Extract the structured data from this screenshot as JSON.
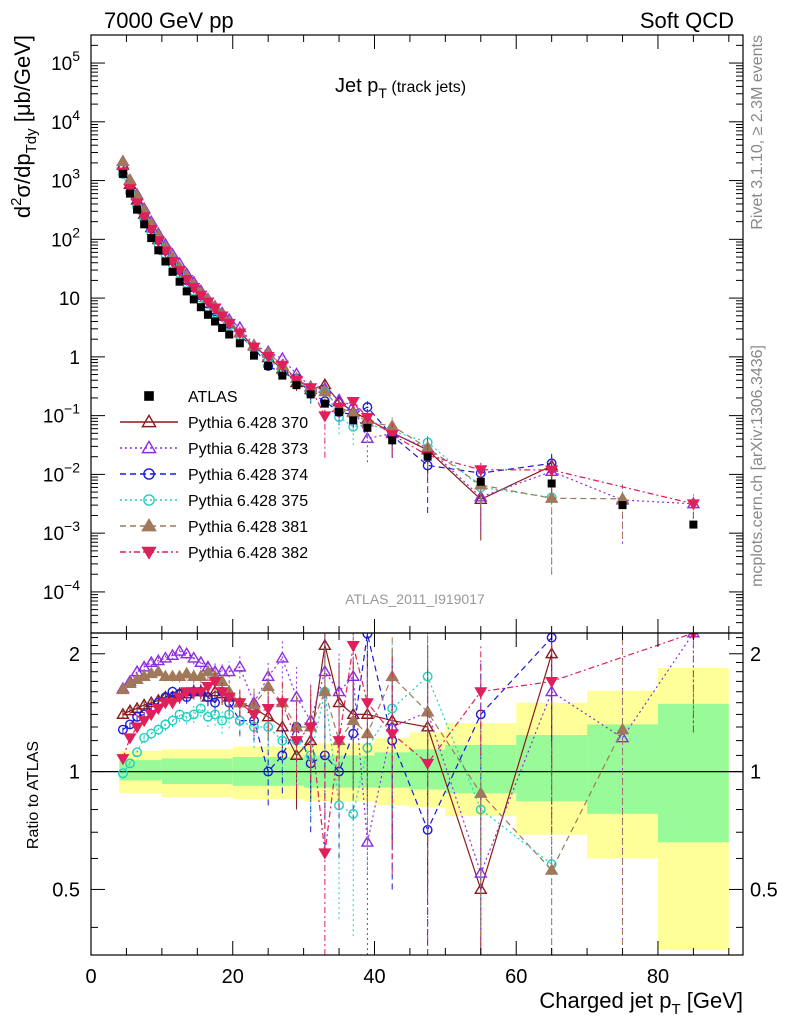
{
  "header": {
    "energy_label": "7000 GeV pp",
    "category_label": "Soft QCD"
  },
  "side_labels": {
    "rivet": "Rivet 3.1.10, ≥ 2.3M events",
    "source": "mcplots.cern.ch [arXiv:1306.3436]"
  },
  "chart_data": {
    "type": "scatter",
    "title_main": "Jet p",
    "title_sub": "T",
    "title_paren": "(track jets)",
    "analysis_id": "ATLAS_2011_I919017",
    "xlabel": "Charged jet p",
    "xlabel_sub": "T",
    "xlabel_unit": "[GeV]",
    "ylabel": "d²σ/dp_Tdy [μb/GeV]",
    "ylabel_parts": {
      "a": "d",
      "sup": "2",
      "b": "σ/dp",
      "sub": "Tdy",
      "c": " [μb/GeV]"
    },
    "ratio_ylabel": "Ratio to ATLAS",
    "xlim": [
      0,
      92
    ],
    "ylim_log": [
      2e-05,
      300000.0
    ],
    "ratio_ylim": [
      0.34,
      2.26
    ],
    "x_ticks": [
      0,
      20,
      40,
      60,
      80
    ],
    "y_tick_labels": [
      {
        "v": 100000.0,
        "base": "10",
        "exp": "5"
      },
      {
        "v": 10000.0,
        "base": "10",
        "exp": "4"
      },
      {
        "v": 1000.0,
        "base": "10",
        "exp": "3"
      },
      {
        "v": 100.0,
        "base": "10",
        "exp": "2"
      },
      {
        "v": 10,
        "base": "10",
        "exp": ""
      },
      {
        "v": 1,
        "base": "1",
        "exp": ""
      },
      {
        "v": 0.1,
        "base": "10",
        "exp": "−1"
      },
      {
        "v": 0.01,
        "base": "10",
        "exp": "−2"
      },
      {
        "v": 0.001,
        "base": "10",
        "exp": "−3"
      },
      {
        "v": 0.0001,
        "base": "10",
        "exp": "−4"
      }
    ],
    "ratio_ticks": [
      0.5,
      1,
      2
    ],
    "legend_position": "middle-left",
    "bands": [
      {
        "x0": 4,
        "x1": 10,
        "g": [
          0.95,
          1.07
        ],
        "y": [
          0.88,
          1.13
        ]
      },
      {
        "x0": 10,
        "x1": 20,
        "g": [
          0.93,
          1.08
        ],
        "y": [
          0.86,
          1.14
        ]
      },
      {
        "x0": 20,
        "x1": 30,
        "g": [
          0.92,
          1.09
        ],
        "y": [
          0.85,
          1.16
        ]
      },
      {
        "x0": 30,
        "x1": 40,
        "g": [
          0.91,
          1.1
        ],
        "y": [
          0.84,
          1.18
        ]
      },
      {
        "x0": 40,
        "x1": 45,
        "g": [
          0.91,
          1.12
        ],
        "y": [
          0.82,
          1.22
        ]
      },
      {
        "x0": 45,
        "x1": 50,
        "g": [
          0.9,
          1.14
        ],
        "y": [
          0.81,
          1.26
        ]
      },
      {
        "x0": 50,
        "x1": 60,
        "g": [
          0.88,
          1.17
        ],
        "y": [
          0.77,
          1.33
        ]
      },
      {
        "x0": 60,
        "x1": 70,
        "g": [
          0.84,
          1.24
        ],
        "y": [
          0.69,
          1.5
        ]
      },
      {
        "x0": 70,
        "x1": 80,
        "g": [
          0.78,
          1.32
        ],
        "y": [
          0.6,
          1.61
        ]
      },
      {
        "x0": 80,
        "x1": 90,
        "g": [
          0.66,
          1.49
        ],
        "y": [
          0.35,
          1.84
        ]
      }
    ],
    "x": [
      4.5,
      5.5,
      6.5,
      7.5,
      8.5,
      9.5,
      10.5,
      11.5,
      12.5,
      13.5,
      14.5,
      15.5,
      16.5,
      17.5,
      18.5,
      19.5,
      21,
      23,
      25,
      27,
      29,
      31,
      33,
      35,
      37,
      39,
      42.5,
      47.5,
      55,
      65,
      75,
      85
    ],
    "data": {
      "name": "ATLAS",
      "values": [
        1300,
        600,
        320,
        180,
        105,
        65,
        42,
        28,
        19,
        13,
        9.5,
        7,
        5.2,
        4,
        3.1,
        2.4,
        1.7,
        1.05,
        0.7,
        0.48,
        0.33,
        0.23,
        0.16,
        0.115,
        0.083,
        0.062,
        0.038,
        0.02,
        0.0075,
        0.007,
        0.003,
        0.0014
      ]
    },
    "series": [
      {
        "name": "Pythia 6.428 370",
        "color": "#8b1a1a",
        "marker": "tri-up-open",
        "dash": "",
        "ratios": [
          1.4,
          1.43,
          1.45,
          1.48,
          1.5,
          1.52,
          1.55,
          1.55,
          1.58,
          1.58,
          1.6,
          1.6,
          1.55,
          1.6,
          1.58,
          1.55,
          1.5,
          1.45,
          1.38,
          1.3,
          1.1,
          1.2,
          2.1,
          1.5,
          1.4,
          1.4,
          1.35,
          1.3,
          0.5,
          2.0,
          null,
          null
        ],
        "errs": [
          0.03,
          0.03,
          0.03,
          0.03,
          0.03,
          0.04,
          0.04,
          0.05,
          0.05,
          0.06,
          0.06,
          0.07,
          0.08,
          0.09,
          0.1,
          0.11,
          0.12,
          0.15,
          0.18,
          0.22,
          0.3,
          0.35,
          0.5,
          0.4,
          0.5,
          0.6,
          0.7,
          0.8,
          0.4,
          1.0,
          null,
          null
        ]
      },
      {
        "name": "Pythia 6.428 373",
        "color": "#8e2be2",
        "marker": "tri-up-open",
        "dash": "2,3",
        "ratios": [
          1.63,
          1.7,
          1.8,
          1.85,
          1.9,
          1.92,
          1.95,
          1.98,
          2.03,
          2.0,
          1.95,
          1.9,
          1.85,
          1.8,
          1.8,
          1.8,
          1.85,
          1.5,
          1.75,
          1.95,
          1.55,
          1.35,
          1.8,
          1.6,
          1.75,
          0.66,
          1.3,
          1.42,
          0.55,
          1.6,
          1.22,
          2.26
        ],
        "errs": [
          0.03,
          0.03,
          0.03,
          0.04,
          0.04,
          0.04,
          0.05,
          0.05,
          0.06,
          0.06,
          0.07,
          0.07,
          0.08,
          0.09,
          0.1,
          0.11,
          0.12,
          0.15,
          0.18,
          0.22,
          0.3,
          0.35,
          0.5,
          0.4,
          0.5,
          0.4,
          0.6,
          0.8,
          0.4,
          1.0,
          1.0,
          1.0
        ]
      },
      {
        "name": "Pythia 6.428 374",
        "color": "#1a1ad8",
        "marker": "circle-open",
        "dash": "6,4",
        "ratios": [
          1.28,
          1.32,
          1.38,
          1.4,
          1.45,
          1.5,
          1.55,
          1.6,
          1.58,
          1.55,
          1.6,
          1.6,
          1.55,
          1.5,
          1.6,
          1.5,
          1.35,
          1.35,
          1.0,
          1.1,
          1.3,
          1.05,
          1.1,
          1.0,
          1.25,
          2.25,
          1.2,
          0.71,
          1.4,
          2.2,
          null,
          null
        ],
        "errs": [
          0.03,
          0.03,
          0.03,
          0.03,
          0.04,
          0.04,
          0.05,
          0.05,
          0.06,
          0.06,
          0.07,
          0.07,
          0.08,
          0.09,
          0.1,
          0.11,
          0.12,
          0.15,
          0.18,
          0.22,
          0.3,
          0.35,
          0.5,
          0.4,
          0.5,
          0.6,
          0.7,
          0.6,
          0.5,
          1.0,
          null,
          null
        ]
      },
      {
        "name": "Pythia 6.428 375",
        "color": "#20d0c0",
        "marker": "circle-open",
        "dash": "2,3",
        "ratios": [
          0.99,
          1.05,
          1.12,
          1.22,
          1.25,
          1.28,
          1.32,
          1.35,
          1.4,
          1.38,
          1.4,
          1.45,
          1.38,
          1.4,
          1.35,
          1.4,
          1.35,
          1.3,
          1.3,
          1.2,
          1.2,
          1.1,
          1.6,
          0.82,
          0.78,
          1.15,
          1.45,
          1.75,
          0.8,
          0.58,
          null,
          null
        ],
        "errs": [
          0.03,
          0.03,
          0.03,
          0.03,
          0.04,
          0.04,
          0.05,
          0.05,
          0.06,
          0.06,
          0.07,
          0.07,
          0.08,
          0.09,
          0.1,
          0.11,
          0.12,
          0.15,
          0.18,
          0.22,
          0.3,
          0.35,
          0.5,
          0.4,
          0.4,
          0.6,
          0.7,
          0.8,
          0.4,
          0.6,
          null,
          null
        ]
      },
      {
        "name": "Pythia 6.428 381",
        "color": "#a0785a",
        "marker": "tri-up-filled",
        "dash": "6,4",
        "ratios": [
          1.62,
          1.68,
          1.72,
          1.75,
          1.78,
          1.8,
          1.75,
          1.75,
          1.75,
          1.78,
          1.75,
          1.75,
          1.8,
          1.75,
          1.7,
          1.6,
          1.5,
          1.48,
          1.65,
          1.5,
          1.3,
          1.3,
          1.6,
          1.2,
          1.35,
          1.25,
          1.75,
          1.42,
          0.88,
          0.56,
          1.28,
          null
        ],
        "errs": [
          0.03,
          0.03,
          0.03,
          0.04,
          0.04,
          0.04,
          0.05,
          0.05,
          0.06,
          0.06,
          0.07,
          0.07,
          0.08,
          0.09,
          0.1,
          0.11,
          0.12,
          0.15,
          0.18,
          0.22,
          0.3,
          0.35,
          0.5,
          0.4,
          0.5,
          0.6,
          0.7,
          0.8,
          0.5,
          0.6,
          1.0,
          null
        ]
      },
      {
        "name": "Pythia 6.428 382",
        "color": "#e0205a",
        "marker": "tri-down-filled",
        "dash": "6,3,2,3",
        "ratios": [
          1.08,
          1.22,
          1.3,
          1.35,
          1.4,
          1.45,
          1.5,
          1.5,
          1.55,
          1.6,
          1.6,
          1.6,
          1.65,
          1.7,
          1.6,
          1.55,
          1.5,
          1.4,
          1.45,
          1.5,
          1.2,
          1.3,
          0.62,
          1.2,
          2.1,
          1.5,
          1.25,
          1.05,
          1.6,
          1.7,
          null,
          2.26
        ],
        "errs": [
          0.03,
          0.03,
          0.03,
          0.04,
          0.04,
          0.04,
          0.05,
          0.05,
          0.06,
          0.06,
          0.07,
          0.07,
          0.08,
          0.09,
          0.1,
          0.11,
          0.12,
          0.15,
          0.18,
          0.22,
          0.3,
          0.35,
          0.5,
          0.4,
          0.5,
          0.6,
          0.7,
          0.8,
          0.5,
          1.0,
          null,
          1.0
        ]
      }
    ]
  }
}
